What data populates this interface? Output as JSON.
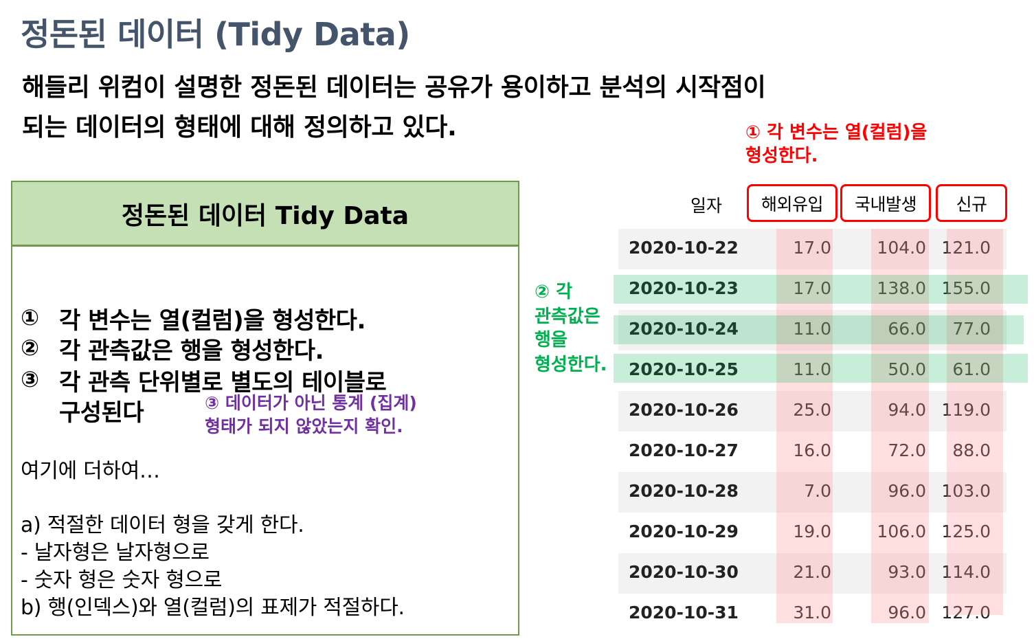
{
  "title": "정돈된 데이터 (Tidy Data)",
  "subtitle": {
    "line1": "해들리 위컴이 설명한 정돈된 데이터는 공유가 용이하고 분석의 시작점이",
    "line2": "되는 데이터의 형태에 대해 정의하고 있다."
  },
  "card": {
    "header": "정돈된 데이터 Tidy Data",
    "rules": [
      {
        "num": "①",
        "text": "각 변수는 열(컬럼)을 형성한다."
      },
      {
        "num": "②",
        "text": "각 관측값은 행을 형성한다."
      },
      {
        "num": "③",
        "text": "각 관측 단위별로 별도의 테이블로",
        "text2": "구성된다"
      }
    ],
    "note3": {
      "line1": "③ 데이터가 아닌 통계 (집계)",
      "line2": "형태가 되지 않았는지 확인."
    },
    "extra": {
      "intro": "여기에 더하여…",
      "a": "a) 적절한 데이터 형을 갖게 한다.",
      "a1": "-    날자형은 날자형으로",
      "a2": "-    숫자 형은 숫자 형으로",
      "b": "b) 행(인덱스)와 열(컬럼)의 표제가 적절하다."
    }
  },
  "annotations": {
    "red": {
      "line1": "① 각 변수는 열(컬럼)을",
      "line2": "형성한다."
    },
    "green": {
      "line1": "② 각",
      "line2": "관측값은",
      "line3": "행을",
      "line4": "형성한다."
    }
  },
  "table": {
    "index_header": "일자",
    "columns": [
      "해외유입",
      "국내발생",
      "신규"
    ],
    "rows": [
      {
        "date": "2020-10-22",
        "v1": "17.0",
        "v2": "104.0",
        "v3": "121.0"
      },
      {
        "date": "2020-10-23",
        "v1": "17.0",
        "v2": "138.0",
        "v3": "155.0"
      },
      {
        "date": "2020-10-24",
        "v1": "11.0",
        "v2": "66.0",
        "v3": "77.0"
      },
      {
        "date": "2020-10-25",
        "v1": "11.0",
        "v2": "50.0",
        "v3": "61.0"
      },
      {
        "date": "2020-10-26",
        "v1": "25.0",
        "v2": "94.0",
        "v3": "119.0"
      },
      {
        "date": "2020-10-27",
        "v1": "16.0",
        "v2": "72.0",
        "v3": "88.0"
      },
      {
        "date": "2020-10-28",
        "v1": "7.0",
        "v2": "96.0",
        "v3": "103.0"
      },
      {
        "date": "2020-10-29",
        "v1": "19.0",
        "v2": "106.0",
        "v3": "125.0"
      },
      {
        "date": "2020-10-30",
        "v1": "21.0",
        "v2": "93.0",
        "v3": "114.0"
      },
      {
        "date": "2020-10-31",
        "v1": "31.0",
        "v2": "96.0",
        "v3": "127.0"
      }
    ]
  },
  "colors": {
    "title": "#44546a",
    "card_border": "#6e9a49",
    "card_header_bg": "#c5e0b4",
    "red": "#ff0000",
    "green": "#00b050",
    "purple": "#7030a0"
  }
}
